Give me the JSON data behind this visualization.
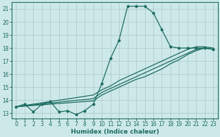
{
  "xlabel": "Humidex (Indice chaleur)",
  "bg_color": "#cde8e8",
  "grid_color": "#b0cccc",
  "line_color": "#1a6b60",
  "xlim": [
    -0.5,
    23.5
  ],
  "ylim": [
    12.6,
    21.5
  ],
  "xticks": [
    0,
    1,
    2,
    3,
    4,
    5,
    6,
    7,
    8,
    9,
    10,
    11,
    12,
    13,
    14,
    15,
    16,
    17,
    18,
    19,
    20,
    21,
    22,
    23
  ],
  "yticks": [
    13,
    14,
    15,
    16,
    17,
    18,
    19,
    20,
    21
  ],
  "line1_x": [
    0,
    1,
    2,
    3,
    4,
    5,
    6,
    7,
    8,
    9,
    10,
    11,
    12,
    13,
    14,
    15,
    16,
    17,
    18,
    19,
    20,
    21,
    22,
    23
  ],
  "line1_y": [
    13.5,
    13.7,
    13.1,
    13.7,
    13.9,
    13.1,
    13.2,
    12.9,
    13.2,
    13.7,
    15.3,
    17.2,
    18.6,
    21.2,
    21.2,
    21.2,
    20.7,
    19.4,
    18.1,
    18.0,
    18.0,
    18.0,
    18.0,
    17.9
  ],
  "line2_x": [
    0,
    1,
    2,
    3,
    4,
    5,
    6,
    7,
    8,
    9,
    10,
    11,
    12,
    13,
    14,
    15,
    16,
    17,
    18,
    19,
    20,
    21,
    22,
    23
  ],
  "line2_y": [
    13.5,
    13.55,
    13.6,
    13.65,
    13.7,
    13.75,
    13.8,
    13.85,
    13.9,
    13.95,
    14.4,
    14.7,
    15.0,
    15.3,
    15.6,
    15.8,
    16.1,
    16.4,
    16.8,
    17.1,
    17.5,
    17.8,
    18.0,
    17.9
  ],
  "line3_x": [
    0,
    1,
    2,
    3,
    4,
    5,
    6,
    7,
    8,
    9,
    10,
    11,
    12,
    13,
    14,
    15,
    16,
    17,
    18,
    19,
    20,
    21,
    22,
    23
  ],
  "line3_y": [
    13.5,
    13.57,
    13.64,
    13.71,
    13.78,
    13.85,
    13.92,
    13.99,
    14.05,
    14.12,
    14.6,
    14.9,
    15.2,
    15.5,
    15.8,
    16.1,
    16.4,
    16.7,
    17.0,
    17.3,
    17.6,
    17.9,
    18.0,
    17.9
  ],
  "line4_x": [
    0,
    1,
    2,
    3,
    4,
    5,
    6,
    7,
    8,
    9,
    10,
    11,
    12,
    13,
    14,
    15,
    16,
    17,
    18,
    19,
    20,
    21,
    22,
    23
  ],
  "line4_y": [
    13.5,
    13.6,
    13.7,
    13.8,
    13.9,
    14.0,
    14.1,
    14.2,
    14.3,
    14.4,
    14.8,
    15.1,
    15.5,
    15.8,
    16.1,
    16.4,
    16.7,
    17.0,
    17.3,
    17.6,
    17.9,
    18.1,
    18.1,
    18.0
  ]
}
